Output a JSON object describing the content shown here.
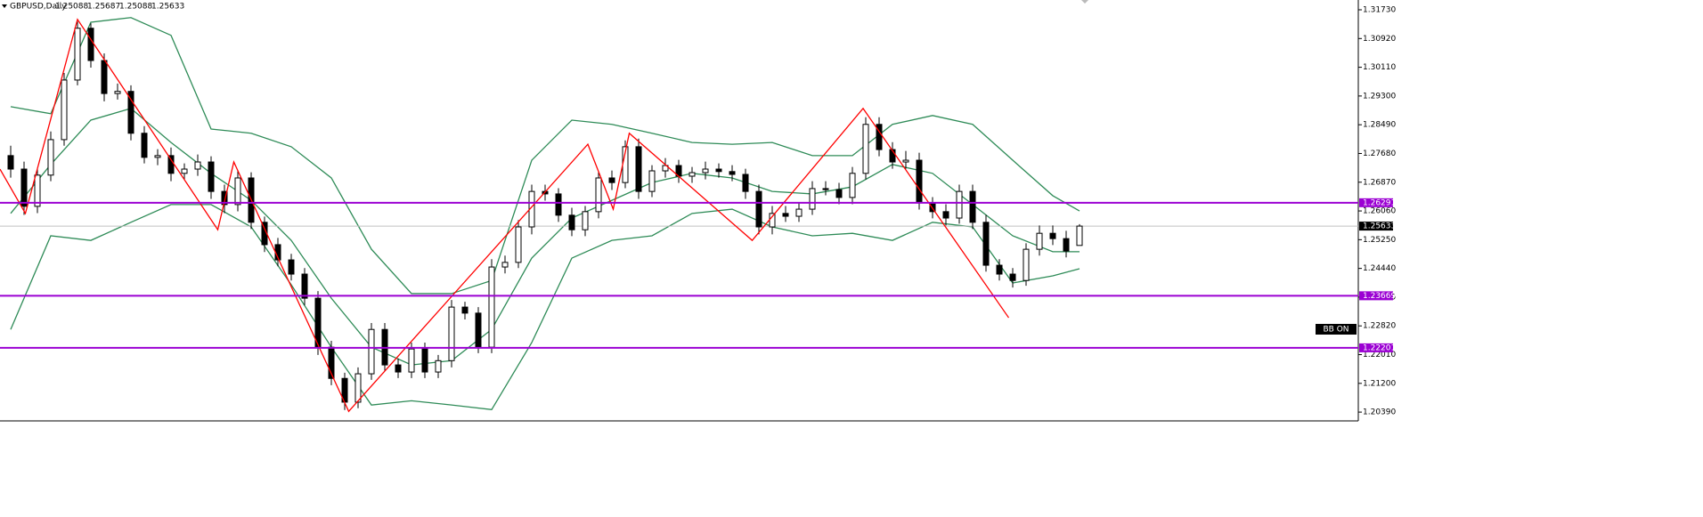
{
  "chart_data": {
    "type": "candlestick",
    "title": "GBPUSD,Daily",
    "badge": "BB ON",
    "ylim": [
      1.20142,
      1.32006
    ],
    "yticks": [
      {
        "value": 1.3173,
        "label": "1.31730"
      },
      {
        "value": 1.3092,
        "label": "1.30920"
      },
      {
        "value": 1.3011,
        "label": "1.30110"
      },
      {
        "value": 1.293,
        "label": "1.29300"
      },
      {
        "value": 1.2849,
        "label": "1.28490"
      },
      {
        "value": 1.2768,
        "label": "1.27680"
      },
      {
        "value": 1.2687,
        "label": "1.26870"
      },
      {
        "value": 1.2606,
        "label": "1.26060"
      },
      {
        "value": 1.2525,
        "label": "1.25250"
      },
      {
        "value": 1.2444,
        "label": "1.24440"
      },
      {
        "value": 1.2363,
        "label": "1.23630"
      },
      {
        "value": 1.2282,
        "label": "1.22820"
      },
      {
        "value": 1.2201,
        "label": "1.22010"
      },
      {
        "value": 1.212,
        "label": "1.21200"
      },
      {
        "value": 1.2039,
        "label": "1.20390"
      }
    ],
    "up_color": "#ffffff",
    "down_color": "#000000",
    "wick_color": "#000000",
    "open": [
      1.2762,
      1.2724,
      1.2619,
      1.2707,
      1.2807,
      1.2975,
      1.3121,
      1.303,
      1.2937,
      1.2943,
      1.2825,
      1.2757,
      1.2762,
      1.2712,
      1.2724,
      1.2744,
      1.2661,
      1.2624,
      1.2699,
      1.2574,
      1.2511,
      1.2468,
      1.2428,
      1.236,
      1.2222,
      1.2134,
      1.2067,
      1.2147,
      1.2272,
      1.2172,
      1.2152,
      1.2217,
      1.2152,
      1.2184,
      1.2335,
      1.2318,
      1.2222,
      1.2448,
      1.2461,
      1.2561,
      1.2661,
      1.2654,
      1.2594,
      1.2553,
      1.2604,
      1.2699,
      1.2686,
      1.2787,
      1.2661,
      1.2719,
      1.2734,
      1.2704,
      1.2714,
      1.2724,
      1.2717,
      1.2709,
      1.2661,
      1.2561,
      1.2599,
      1.2591,
      1.2611,
      1.2669,
      1.2666,
      1.2644,
      1.2712,
      1.285,
      1.2779,
      1.2744,
      1.2749,
      1.2629,
      1.2604,
      1.2586,
      1.2661,
      1.2574,
      1.2453,
      1.2428,
      1.241,
      1.2498,
      1.2543,
      1.2528,
      1.25088
    ],
    "high": [
      1.279,
      1.2745,
      1.2725,
      1.283,
      1.2995,
      1.314,
      1.3135,
      1.305,
      1.2965,
      1.296,
      1.2845,
      1.278,
      1.2785,
      1.274,
      1.2765,
      1.276,
      1.268,
      1.272,
      1.2715,
      1.259,
      1.253,
      1.2485,
      1.2445,
      1.238,
      1.224,
      1.215,
      1.2165,
      1.229,
      1.229,
      1.219,
      1.2235,
      1.2235,
      1.22,
      1.2355,
      1.235,
      1.2335,
      1.247,
      1.248,
      1.258,
      1.268,
      1.268,
      1.267,
      1.2615,
      1.262,
      1.2715,
      1.272,
      1.2805,
      1.281,
      1.2735,
      1.2755,
      1.275,
      1.273,
      1.2745,
      1.274,
      1.2735,
      1.2725,
      1.268,
      1.262,
      1.262,
      1.263,
      1.269,
      1.269,
      1.2685,
      1.273,
      1.287,
      1.287,
      1.28,
      1.2775,
      1.277,
      1.2645,
      1.2625,
      1.268,
      1.268,
      1.2595,
      1.247,
      1.2445,
      1.2515,
      1.2565,
      1.2565,
      1.255,
      1.25687
    ],
    "low": [
      1.27,
      1.2595,
      1.26,
      1.269,
      1.279,
      1.296,
      1.301,
      1.2915,
      1.292,
      1.2805,
      1.274,
      1.2735,
      1.269,
      1.2695,
      1.2705,
      1.264,
      1.26,
      1.2605,
      1.2555,
      1.249,
      1.245,
      1.241,
      1.234,
      1.22,
      1.2115,
      1.2045,
      1.205,
      1.213,
      1.2155,
      1.2135,
      1.2135,
      1.2135,
      1.2135,
      1.2165,
      1.23,
      1.2205,
      1.2205,
      1.243,
      1.2445,
      1.254,
      1.2635,
      1.2575,
      1.2535,
      1.2535,
      1.2585,
      1.2665,
      1.267,
      1.264,
      1.2645,
      1.27,
      1.2685,
      1.2685,
      1.2695,
      1.27,
      1.269,
      1.264,
      1.254,
      1.254,
      1.2575,
      1.2575,
      1.2595,
      1.265,
      1.2625,
      1.2625,
      1.2695,
      1.276,
      1.2725,
      1.2725,
      1.261,
      1.2585,
      1.2565,
      1.257,
      1.2555,
      1.2435,
      1.241,
      1.239,
      1.2395,
      1.248,
      1.251,
      1.2475,
      1.25088
    ],
    "close": [
      1.2724,
      1.2619,
      1.2707,
      1.2807,
      1.2975,
      1.3121,
      1.303,
      1.2937,
      1.2943,
      1.2825,
      1.2757,
      1.2762,
      1.2712,
      1.2724,
      1.2744,
      1.2661,
      1.2624,
      1.2699,
      1.2574,
      1.2511,
      1.2468,
      1.2428,
      1.236,
      1.2222,
      1.2134,
      1.2067,
      1.2147,
      1.2272,
      1.2172,
      1.2152,
      1.2217,
      1.2152,
      1.2184,
      1.2335,
      1.2318,
      1.2222,
      1.2448,
      1.2461,
      1.2561,
      1.2661,
      1.2654,
      1.2594,
      1.2553,
      1.2604,
      1.2699,
      1.2686,
      1.2787,
      1.2661,
      1.2719,
      1.2734,
      1.2704,
      1.2714,
      1.2724,
      1.2717,
      1.2709,
      1.2661,
      1.2561,
      1.2599,
      1.2591,
      1.2611,
      1.2669,
      1.2666,
      1.2644,
      1.2712,
      1.285,
      1.2779,
      1.2744,
      1.2749,
      1.2629,
      1.2604,
      1.2586,
      1.2661,
      1.2574,
      1.2453,
      1.2428,
      1.241,
      1.2498,
      1.2543,
      1.2528,
      1.2493,
      1.25633
    ],
    "bollinger": {
      "color": "#2e8b57",
      "x": [
        0,
        3,
        6,
        9,
        12,
        15,
        18,
        21,
        24,
        27,
        30,
        33,
        36,
        39,
        42,
        45,
        48,
        51,
        54,
        57,
        60,
        63,
        66,
        69,
        72,
        75,
        78,
        80
      ],
      "upper": [
        1.29,
        1.288,
        1.3138,
        1.3151,
        1.3101,
        1.2837,
        1.2825,
        1.2787,
        1.2699,
        1.2498,
        1.2373,
        1.2373,
        1.241,
        1.2749,
        1.2862,
        1.285,
        1.2825,
        1.2799,
        1.2794,
        1.2799,
        1.2762,
        1.2762,
        1.285,
        1.2875,
        1.285,
        1.2749,
        1.2649,
        1.2606
      ],
      "middle": [
        1.2599,
        1.2737,
        1.2862,
        1.2895,
        1.2799,
        1.2712,
        1.2636,
        1.2523,
        1.236,
        1.2222,
        1.2172,
        1.2184,
        1.2272,
        1.2473,
        1.2586,
        1.2636,
        1.2686,
        1.2712,
        1.2699,
        1.2661,
        1.2654,
        1.2674,
        1.2737,
        1.2712,
        1.2624,
        1.2536,
        1.2491,
        1.2491
      ],
      "lower": [
        1.2272,
        1.2536,
        1.2523,
        1.2574,
        1.2624,
        1.2624,
        1.2561,
        1.2398,
        1.2222,
        1.2059,
        1.2071,
        1.2059,
        1.2046,
        1.2235,
        1.2473,
        1.2523,
        1.2536,
        1.2599,
        1.2611,
        1.2561,
        1.2536,
        1.2543,
        1.2523,
        1.2574,
        1.2561,
        1.2403,
        1.2423,
        1.2443
      ]
    },
    "zigzag": {
      "color": "#ff0000",
      "x": [
        -0.8,
        1.1,
        5,
        15.5,
        16.7,
        25.3,
        43.2,
        45.1,
        46.3,
        55.5,
        63.8,
        74.7
      ],
      "values": [
        1.2724,
        1.2599,
        1.3146,
        1.2553,
        1.2744,
        1.2041,
        1.2794,
        1.2611,
        1.2825,
        1.2523,
        1.2895,
        1.2305
      ]
    },
    "levels": [
      1.26291,
      1.23669,
      1.22201
    ],
    "level_color": "#9b00d3",
    "price_line_color": "#c0c0c0"
  }
}
